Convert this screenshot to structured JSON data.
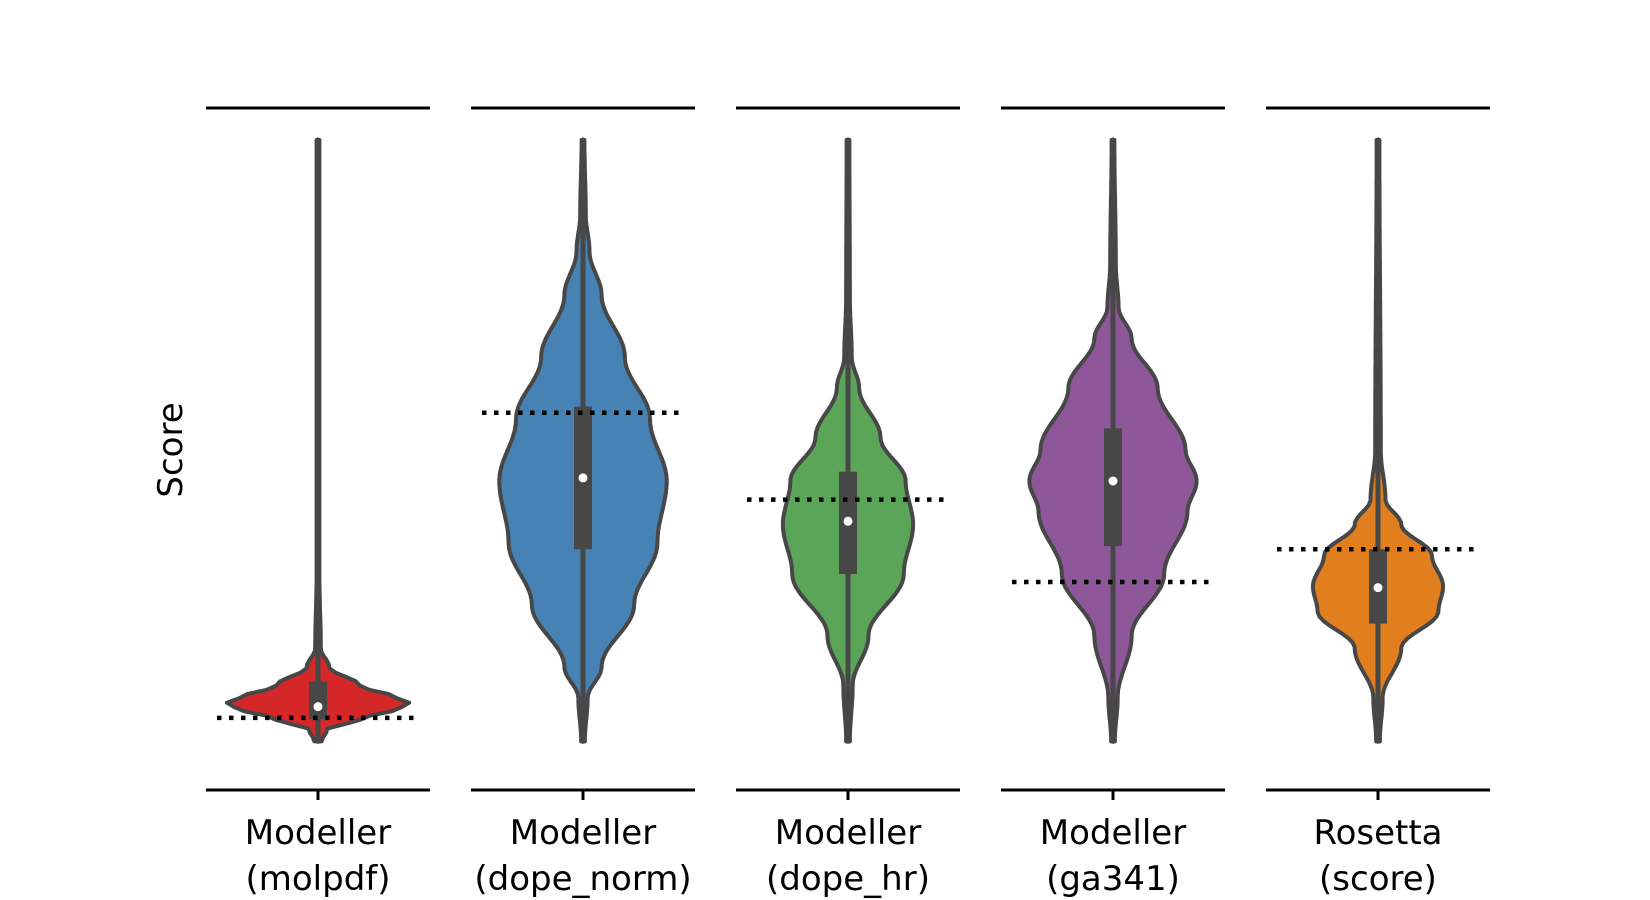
{
  "chart_data": {
    "type": "violin",
    "ylabel": "Score",
    "y_scale": "normalized (no tick values shown)",
    "ylim": [
      0,
      1
    ],
    "grid": false,
    "legend": "none",
    "panels": [
      {
        "label_line1": "Modeller",
        "label_line2": "(molpdf)",
        "color": "#d62728",
        "min": 0.03,
        "max": 1.0,
        "q1": 0.066,
        "median": 0.086,
        "q3": 0.126,
        "reference": 0.068,
        "density": [
          [
            0.03,
            0.04
          ],
          [
            0.05,
            0.1
          ],
          [
            0.065,
            0.45
          ],
          [
            0.085,
            0.9
          ],
          [
            0.09,
            1.0
          ],
          [
            0.1,
            0.85
          ],
          [
            0.12,
            0.45
          ],
          [
            0.15,
            0.12
          ],
          [
            0.18,
            0.03
          ],
          [
            0.3,
            0.015
          ],
          [
            1.0,
            0.015
          ]
        ]
      },
      {
        "label_line1": "Modeller",
        "label_line2": "(dope_norm)",
        "color": "#4682b4",
        "min": 0.03,
        "max": 1.0,
        "q1": 0.34,
        "median": 0.455,
        "q3": 0.57,
        "reference": 0.56,
        "density": [
          [
            0.03,
            0.02
          ],
          [
            0.1,
            0.05
          ],
          [
            0.15,
            0.2
          ],
          [
            0.25,
            0.55
          ],
          [
            0.35,
            0.8
          ],
          [
            0.45,
            0.9
          ],
          [
            0.55,
            0.72
          ],
          [
            0.65,
            0.45
          ],
          [
            0.75,
            0.2
          ],
          [
            0.82,
            0.07
          ],
          [
            0.88,
            0.03
          ],
          [
            1.0,
            0.015
          ]
        ]
      },
      {
        "label_line1": "Modeller",
        "label_line2": "(dope_hr)",
        "color": "#5aa557",
        "min": 0.03,
        "max": 1.0,
        "q1": 0.3,
        "median": 0.385,
        "q3": 0.465,
        "reference": 0.42,
        "density": [
          [
            0.03,
            0.02
          ],
          [
            0.12,
            0.05
          ],
          [
            0.2,
            0.22
          ],
          [
            0.3,
            0.6
          ],
          [
            0.38,
            0.7
          ],
          [
            0.45,
            0.62
          ],
          [
            0.52,
            0.35
          ],
          [
            0.6,
            0.12
          ],
          [
            0.65,
            0.04
          ],
          [
            0.75,
            0.02
          ],
          [
            1.0,
            0.015
          ]
        ]
      },
      {
        "label_line1": "Modeller",
        "label_line2": "(ga341)",
        "color": "#8e579a",
        "min": 0.03,
        "max": 1.0,
        "q1": 0.345,
        "median": 0.45,
        "q3": 0.535,
        "reference": 0.287,
        "density": [
          [
            0.03,
            0.02
          ],
          [
            0.1,
            0.05
          ],
          [
            0.2,
            0.2
          ],
          [
            0.3,
            0.55
          ],
          [
            0.4,
            0.8
          ],
          [
            0.45,
            0.9
          ],
          [
            0.5,
            0.78
          ],
          [
            0.6,
            0.48
          ],
          [
            0.68,
            0.2
          ],
          [
            0.73,
            0.06
          ],
          [
            0.8,
            0.03
          ],
          [
            1.0,
            0.015
          ]
        ]
      },
      {
        "label_line1": "Rosetta",
        "label_line2": "(score)",
        "color": "#e17f1e",
        "min": 0.03,
        "max": 1.0,
        "q1": 0.22,
        "median": 0.278,
        "q3": 0.34,
        "reference": 0.34,
        "density": [
          [
            0.03,
            0.02
          ],
          [
            0.1,
            0.05
          ],
          [
            0.18,
            0.25
          ],
          [
            0.24,
            0.65
          ],
          [
            0.28,
            0.7
          ],
          [
            0.33,
            0.58
          ],
          [
            0.38,
            0.25
          ],
          [
            0.42,
            0.08
          ],
          [
            0.5,
            0.03
          ],
          [
            1.0,
            0.015
          ]
        ]
      }
    ]
  }
}
